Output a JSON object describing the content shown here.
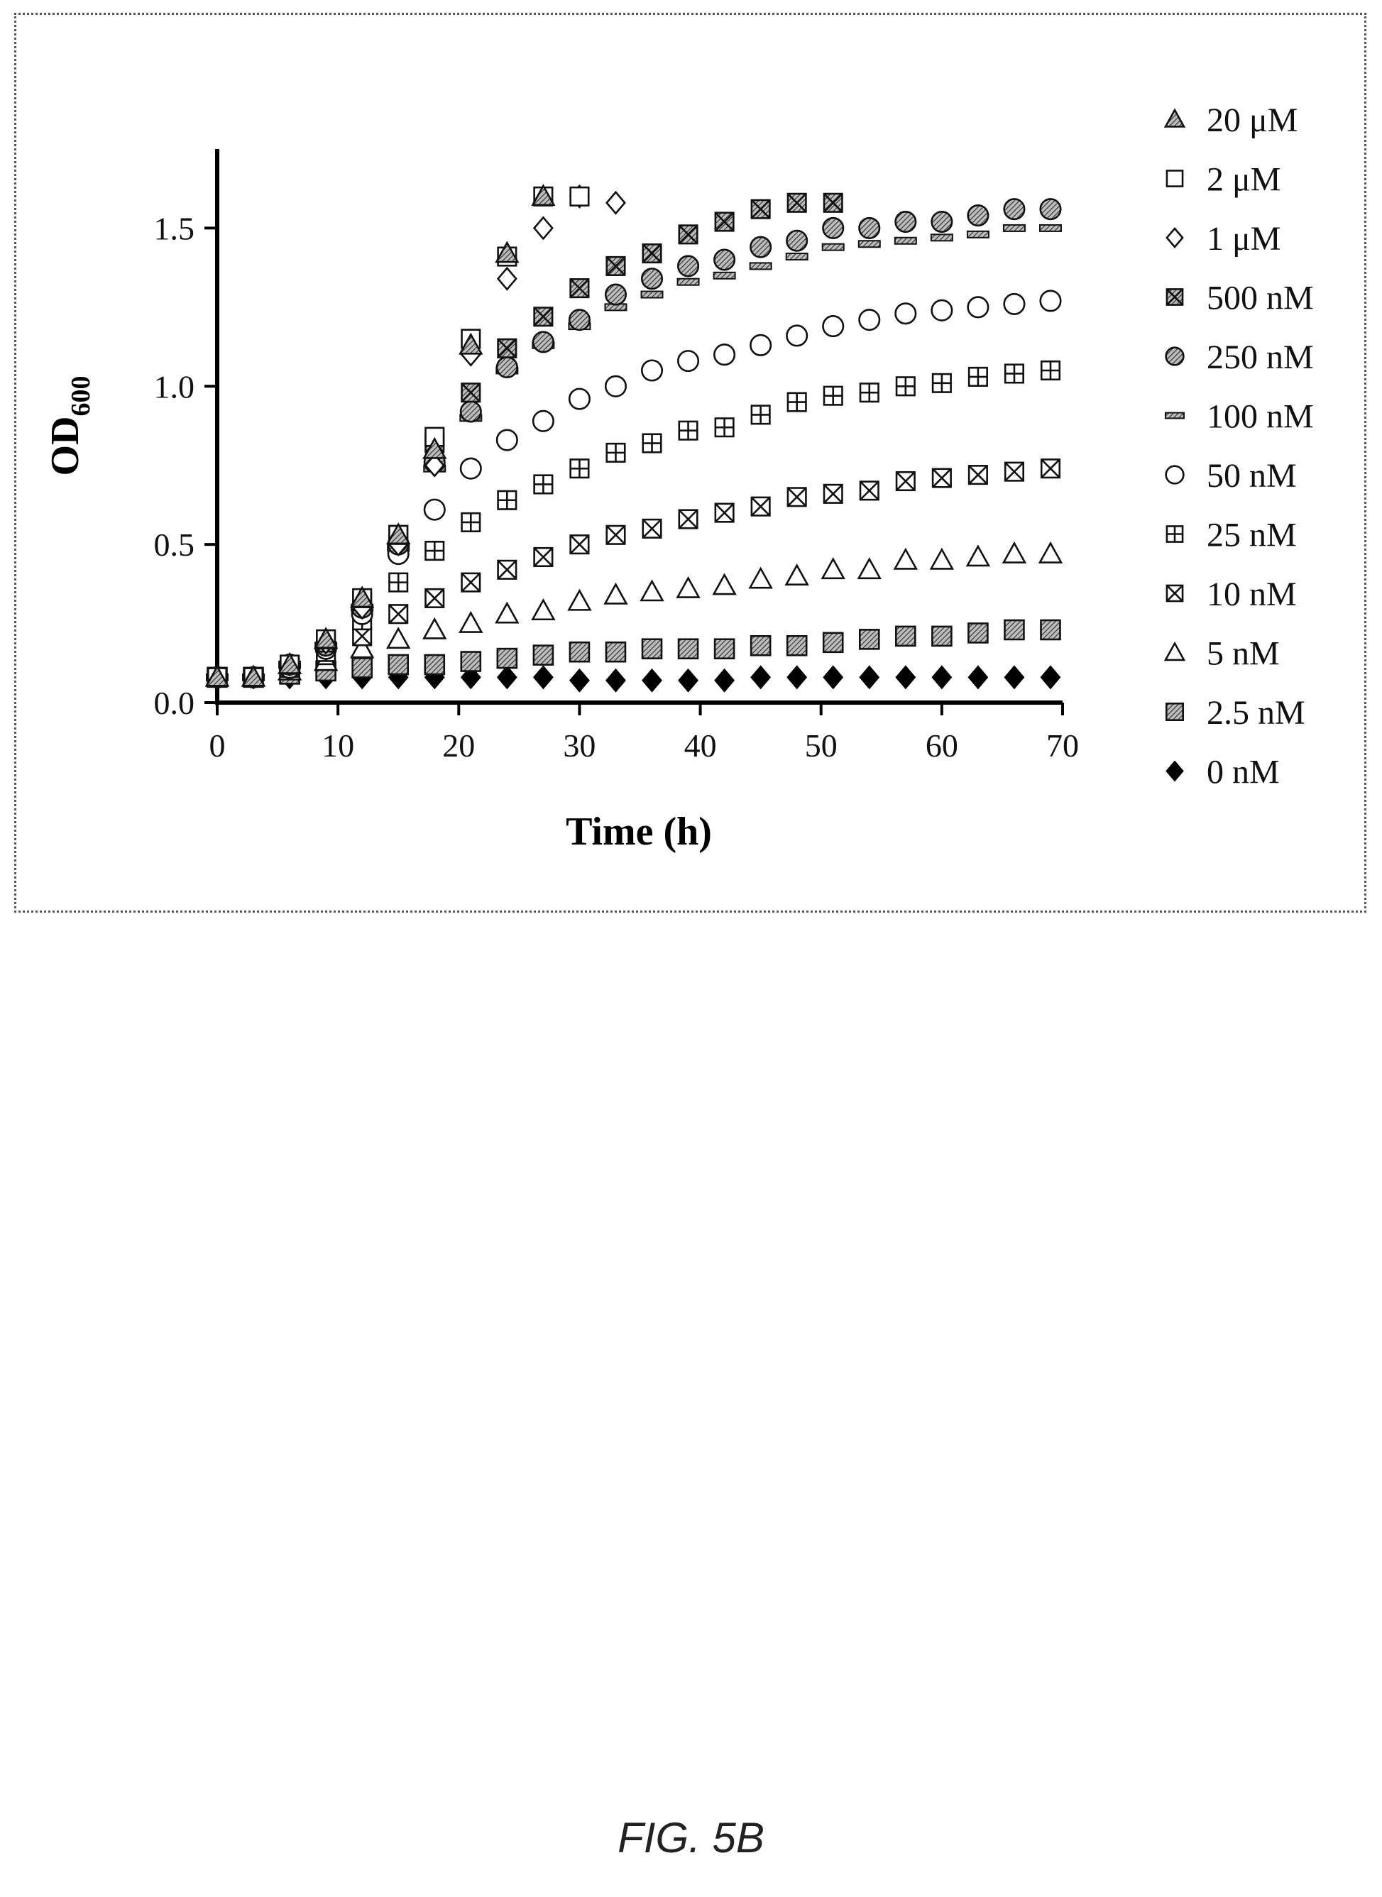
{
  "chart_data": {
    "type": "scatter",
    "xlabel": "Time (h)",
    "ylabel_main": "OD",
    "ylabel_sub": "600",
    "xlim": [
      0,
      70
    ],
    "ylim": [
      0,
      1.75
    ],
    "x_ticks": [
      0,
      10,
      20,
      30,
      40,
      50,
      60,
      70
    ],
    "x_tick_labels": [
      "0",
      "10",
      "20",
      "30",
      "40",
      "50",
      "60",
      "70"
    ],
    "y_ticks": [
      0,
      0.5,
      1.0,
      1.5
    ],
    "y_tick_labels": [
      "0.0",
      "0.5",
      "1.0",
      "1.5"
    ],
    "grid": false,
    "legend_position": "right",
    "series": [
      {
        "name": "20 μM",
        "marker": "triangle-filled",
        "x": [
          0,
          3,
          6,
          9,
          12,
          15,
          18,
          21,
          24,
          27
        ],
        "y": [
          0.08,
          0.08,
          0.12,
          0.2,
          0.33,
          0.53,
          0.8,
          1.13,
          1.42,
          1.6
        ]
      },
      {
        "name": "2 μM",
        "marker": "square-open",
        "x": [
          0,
          3,
          6,
          9,
          12,
          15,
          18,
          21,
          24,
          27,
          30
        ],
        "y": [
          0.08,
          0.08,
          0.12,
          0.2,
          0.33,
          0.53,
          0.84,
          1.15,
          1.41,
          1.6,
          1.6
        ]
      },
      {
        "name": "1 μM",
        "marker": "diamond-open",
        "x": [
          0,
          3,
          6,
          9,
          12,
          15,
          18,
          21,
          24,
          27,
          30,
          33
        ],
        "y": [
          0.08,
          0.08,
          0.12,
          0.19,
          0.3,
          0.5,
          0.75,
          1.1,
          1.34,
          1.5,
          1.6,
          1.58
        ]
      },
      {
        "name": "500 nM",
        "marker": "square-x-filled",
        "x": [
          0,
          3,
          6,
          9,
          12,
          15,
          18,
          21,
          24,
          27,
          30,
          33,
          36,
          39,
          42,
          45,
          48,
          51
        ],
        "y": [
          0.08,
          0.08,
          0.12,
          0.19,
          0.32,
          0.53,
          0.82,
          0.98,
          1.12,
          1.22,
          1.31,
          1.38,
          1.42,
          1.48,
          1.52,
          1.56,
          1.58,
          1.58
        ]
      },
      {
        "name": "250 nM",
        "marker": "circle-filled",
        "x": [
          0,
          3,
          6,
          9,
          12,
          15,
          18,
          21,
          24,
          27,
          30,
          33,
          36,
          39,
          42,
          45,
          48,
          51,
          54,
          57,
          60,
          63,
          66,
          69
        ],
        "y": [
          0.08,
          0.08,
          0.12,
          0.18,
          0.3,
          0.5,
          0.76,
          0.92,
          1.06,
          1.14,
          1.21,
          1.29,
          1.34,
          1.38,
          1.4,
          1.44,
          1.46,
          1.5,
          1.5,
          1.52,
          1.52,
          1.54,
          1.56,
          1.56
        ]
      },
      {
        "name": "100 nM",
        "marker": "dash",
        "x": [
          0,
          3,
          6,
          9,
          12,
          15,
          18,
          21,
          24,
          27,
          30,
          33,
          36,
          39,
          42,
          45,
          48,
          51,
          54,
          57,
          60,
          63,
          66,
          69
        ],
        "y": [
          0.08,
          0.08,
          0.12,
          0.18,
          0.3,
          0.49,
          0.74,
          0.9,
          1.05,
          1.13,
          1.19,
          1.25,
          1.29,
          1.33,
          1.35,
          1.38,
          1.41,
          1.44,
          1.45,
          1.46,
          1.47,
          1.48,
          1.5,
          1.5
        ]
      },
      {
        "name": "50 nM",
        "marker": "circle-open",
        "x": [
          0,
          3,
          6,
          9,
          12,
          15,
          18,
          21,
          24,
          27,
          30,
          33,
          36,
          39,
          42,
          45,
          48,
          51,
          54,
          57,
          60,
          63,
          66,
          69
        ],
        "y": [
          0.08,
          0.08,
          0.11,
          0.17,
          0.28,
          0.47,
          0.61,
          0.74,
          0.83,
          0.89,
          0.96,
          1.0,
          1.05,
          1.08,
          1.1,
          1.13,
          1.16,
          1.19,
          1.21,
          1.23,
          1.24,
          1.25,
          1.26,
          1.27
        ]
      },
      {
        "name": "25 nM",
        "marker": "square-plus-open",
        "x": [
          0,
          3,
          6,
          9,
          12,
          15,
          18,
          21,
          24,
          27,
          30,
          33,
          36,
          39,
          42,
          45,
          48,
          51,
          54,
          57,
          60,
          63,
          66,
          69
        ],
        "y": [
          0.08,
          0.08,
          0.11,
          0.16,
          0.26,
          0.38,
          0.48,
          0.57,
          0.64,
          0.69,
          0.74,
          0.79,
          0.82,
          0.86,
          0.87,
          0.91,
          0.95,
          0.97,
          0.98,
          1.0,
          1.01,
          1.03,
          1.04,
          1.05
        ]
      },
      {
        "name": "10 nM",
        "marker": "square-x-open",
        "x": [
          0,
          3,
          6,
          9,
          12,
          15,
          18,
          21,
          24,
          27,
          30,
          33,
          36,
          39,
          42,
          45,
          48,
          51,
          54,
          57,
          60,
          63,
          66,
          69
        ],
        "y": [
          0.08,
          0.08,
          0.11,
          0.15,
          0.21,
          0.28,
          0.33,
          0.38,
          0.42,
          0.46,
          0.5,
          0.53,
          0.55,
          0.58,
          0.6,
          0.62,
          0.65,
          0.66,
          0.67,
          0.7,
          0.71,
          0.72,
          0.73,
          0.74
        ]
      },
      {
        "name": "5 nM",
        "marker": "triangle-open",
        "x": [
          0,
          3,
          6,
          9,
          12,
          15,
          18,
          21,
          24,
          27,
          30,
          33,
          36,
          39,
          42,
          45,
          48,
          51,
          54,
          57,
          60,
          63,
          66,
          69
        ],
        "y": [
          0.08,
          0.08,
          0.1,
          0.13,
          0.17,
          0.2,
          0.23,
          0.25,
          0.28,
          0.29,
          0.32,
          0.34,
          0.35,
          0.36,
          0.37,
          0.39,
          0.4,
          0.42,
          0.42,
          0.45,
          0.45,
          0.46,
          0.47,
          0.47
        ]
      },
      {
        "name": "2.5 nM",
        "marker": "square-filled",
        "x": [
          0,
          3,
          6,
          9,
          12,
          15,
          18,
          21,
          24,
          27,
          30,
          33,
          36,
          39,
          42,
          45,
          48,
          51,
          54,
          57,
          60,
          63,
          66,
          69
        ],
        "y": [
          0.08,
          0.08,
          0.09,
          0.1,
          0.11,
          0.12,
          0.12,
          0.13,
          0.14,
          0.15,
          0.16,
          0.16,
          0.17,
          0.17,
          0.17,
          0.18,
          0.18,
          0.19,
          0.2,
          0.21,
          0.21,
          0.22,
          0.23,
          0.23
        ]
      },
      {
        "name": "0 nM",
        "marker": "diamond-filled",
        "x": [
          0,
          3,
          6,
          9,
          12,
          15,
          18,
          21,
          24,
          27,
          30,
          33,
          36,
          39,
          42,
          45,
          48,
          51,
          54,
          57,
          60,
          63,
          66,
          69
        ],
        "y": [
          0.08,
          0.08,
          0.08,
          0.08,
          0.08,
          0.08,
          0.08,
          0.08,
          0.08,
          0.08,
          0.07,
          0.07,
          0.07,
          0.07,
          0.07,
          0.08,
          0.08,
          0.08,
          0.08,
          0.08,
          0.08,
          0.08,
          0.08,
          0.08
        ]
      }
    ]
  },
  "caption": "FIG. 5B",
  "colors": {
    "ink": "#000000",
    "hatch": "#555555",
    "frame": "#555555"
  }
}
